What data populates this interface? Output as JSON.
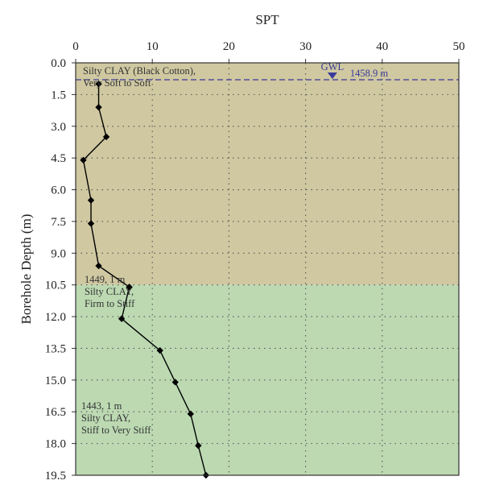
{
  "chart_data": {
    "type": "line",
    "xlabel": "SPT",
    "ylabel": "Borehole Depth (m)",
    "xlim": [
      0,
      50
    ],
    "ylim": [
      0,
      19.5
    ],
    "x_axis_position": "top",
    "y_axis_inverted": true,
    "x_ticks": [
      "0",
      "10",
      "20",
      "30",
      "40",
      "50"
    ],
    "y_ticks": [
      "0.0",
      "1.5",
      "3.0",
      "4.5",
      "6.0",
      "7.5",
      "9.0",
      "10.5",
      "12.0",
      "13.5",
      "15.0",
      "16.5",
      "18.0",
      "19.5"
    ],
    "grid": "dotted",
    "series": [
      {
        "marker": "diamond",
        "color": "#000000",
        "points": [
          {
            "spt": 3,
            "depth": 1.0
          },
          {
            "spt": 3,
            "depth": 2.1
          },
          {
            "spt": 4,
            "depth": 3.5
          },
          {
            "spt": 1,
            "depth": 4.6
          },
          {
            "spt": 2,
            "depth": 6.5
          },
          {
            "spt": 2,
            "depth": 7.6
          },
          {
            "spt": 3,
            "depth": 9.6
          },
          {
            "spt": 7,
            "depth": 10.6
          },
          {
            "spt": 6,
            "depth": 12.1
          },
          {
            "spt": 11,
            "depth": 13.6
          },
          {
            "spt": 13,
            "depth": 15.1
          },
          {
            "spt": 15,
            "depth": 16.6
          },
          {
            "spt": 16,
            "depth": 18.1
          },
          {
            "spt": 17,
            "depth": 19.5
          }
        ]
      }
    ],
    "layers": [
      {
        "top": 0,
        "bottom": 10.5,
        "color": "#cfc8a1",
        "label_lines": [
          "Silty CLAY (Black Cotton),",
          "Very Soft to Soft"
        ]
      },
      {
        "top": 10.5,
        "bottom": 19.5,
        "color": "#bcd9b2",
        "label_lines": [
          "1449, 1 m",
          "Silty CLAY,",
          "Firm to Stiff"
        ]
      }
    ],
    "extra_annotation": {
      "label_lines": [
        "1443, 1 m",
        "Silty CLAY,",
        "Stiff to Very Stiff"
      ]
    },
    "gwl": {
      "label": "GWL",
      "elevation_label": "1458.9 m",
      "depth": 0.8,
      "marker_spt": 33.5,
      "color": "#3a3a9a"
    }
  }
}
